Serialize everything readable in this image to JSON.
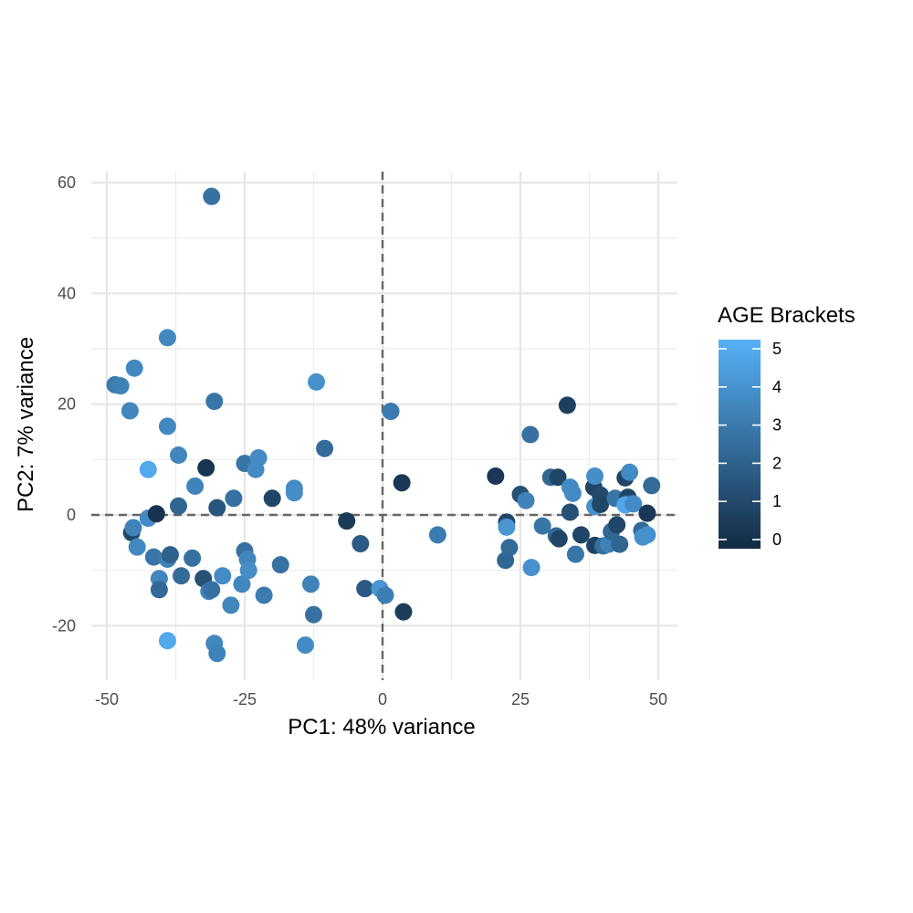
{
  "chart_data": {
    "type": "scatter",
    "title": "",
    "xlabel": "PC1: 48% variance",
    "ylabel": "PC2: 7% variance",
    "xlim": [
      -51,
      53
    ],
    "ylim": [
      -30,
      62
    ],
    "x_ticks": [
      -50,
      -25,
      0,
      25,
      50
    ],
    "x_tick_labels": [
      "-50",
      "-25",
      "0",
      "25",
      "50"
    ],
    "y_ticks": [
      -20,
      0,
      20,
      40,
      60
    ],
    "y_tick_labels": [
      "-20",
      "0",
      "20",
      "40",
      "60"
    ],
    "grid": true,
    "reference_lines": {
      "x": 0,
      "y": 0,
      "style": "dashed"
    },
    "legend": {
      "title": "AGE Brackets",
      "placement": "right",
      "ticks": [
        "0",
        "1",
        "2",
        "3",
        "4",
        "5"
      ],
      "range": [
        0,
        5
      ],
      "color_low": "#132b43",
      "color_high": "#56b1f7"
    },
    "points": [
      {
        "x": -31,
        "y": 57.5,
        "c": 2.6
      },
      {
        "x": -39,
        "y": 32,
        "c": 3.5
      },
      {
        "x": -48.5,
        "y": 23.5,
        "c": 3
      },
      {
        "x": -47.5,
        "y": 23.3,
        "c": 3.2
      },
      {
        "x": -45,
        "y": 26.5,
        "c": 3.5
      },
      {
        "x": -45.8,
        "y": 18.8,
        "c": 3.4
      },
      {
        "x": -39,
        "y": 16,
        "c": 3.5
      },
      {
        "x": -30.5,
        "y": 20.5,
        "c": 2.8
      },
      {
        "x": -12,
        "y": 24,
        "c": 3.8
      },
      {
        "x": -37,
        "y": 10.8,
        "c": 3.4
      },
      {
        "x": -42.5,
        "y": 8.2,
        "c": 4.7
      },
      {
        "x": -32,
        "y": 8.5,
        "c": 0.4
      },
      {
        "x": -34,
        "y": 5.2,
        "c": 3.3
      },
      {
        "x": -37,
        "y": 1.6,
        "c": 2.2
      },
      {
        "x": -30,
        "y": 1.3,
        "c": 1.6
      },
      {
        "x": -27,
        "y": 3,
        "c": 2.6
      },
      {
        "x": -25,
        "y": 9.3,
        "c": 2.8
      },
      {
        "x": -22.5,
        "y": 10.3,
        "c": 3.6
      },
      {
        "x": -23,
        "y": 8.2,
        "c": 3.6
      },
      {
        "x": -16,
        "y": 4.8,
        "c": 3.6
      },
      {
        "x": -16,
        "y": 4,
        "c": 3.7
      },
      {
        "x": -10.5,
        "y": 12,
        "c": 2.4
      },
      {
        "x": -20,
        "y": 3,
        "c": 1
      },
      {
        "x": -45.5,
        "y": -3.2,
        "c": 1
      },
      {
        "x": -45.2,
        "y": -2.3,
        "c": 3.3
      },
      {
        "x": -42.5,
        "y": -0.6,
        "c": 3.6
      },
      {
        "x": -41,
        "y": 0.2,
        "c": 0.3
      },
      {
        "x": -44.5,
        "y": -5.8,
        "c": 3.5
      },
      {
        "x": -41.5,
        "y": -7.6,
        "c": 2.8
      },
      {
        "x": -39,
        "y": -8,
        "c": 3.2
      },
      {
        "x": -38.5,
        "y": -7.2,
        "c": 2
      },
      {
        "x": -40.5,
        "y": -11.5,
        "c": 3.4
      },
      {
        "x": -40.5,
        "y": -13.5,
        "c": 2.3
      },
      {
        "x": -36.5,
        "y": -11,
        "c": 2.4
      },
      {
        "x": -34.5,
        "y": -7.8,
        "c": 2.6
      },
      {
        "x": -32.5,
        "y": -11.5,
        "c": 1.4
      },
      {
        "x": -31.5,
        "y": -13.8,
        "c": 3.3
      },
      {
        "x": -31,
        "y": -13.5,
        "c": 2.6
      },
      {
        "x": -29,
        "y": -11,
        "c": 3.6
      },
      {
        "x": -27.5,
        "y": -16.3,
        "c": 3.4
      },
      {
        "x": -25.5,
        "y": -12.5,
        "c": 3.4
      },
      {
        "x": -25,
        "y": -6.5,
        "c": 2.6
      },
      {
        "x": -24.5,
        "y": -8,
        "c": 3.4
      },
      {
        "x": -24.3,
        "y": -10,
        "c": 3.7
      },
      {
        "x": -21.5,
        "y": -14.5,
        "c": 3
      },
      {
        "x": -18.5,
        "y": -9,
        "c": 2.6
      },
      {
        "x": -13,
        "y": -12.5,
        "c": 3.3
      },
      {
        "x": -12.5,
        "y": -18,
        "c": 2.6
      },
      {
        "x": -14,
        "y": -23.5,
        "c": 3.6
      },
      {
        "x": -30.5,
        "y": -23.2,
        "c": 3.4
      },
      {
        "x": -30,
        "y": -25,
        "c": 3.3
      },
      {
        "x": -39,
        "y": -22.7,
        "c": 4.7
      },
      {
        "x": -6.5,
        "y": -1.1,
        "c": 0.6
      },
      {
        "x": -4,
        "y": -5.2,
        "c": 1.8
      },
      {
        "x": -3.2,
        "y": -13.3,
        "c": 1.8
      },
      {
        "x": -0.5,
        "y": -13.3,
        "c": 4
      },
      {
        "x": 0.5,
        "y": -14.5,
        "c": 3.1
      },
      {
        "x": 3.8,
        "y": -17.5,
        "c": 0.7
      },
      {
        "x": 1.5,
        "y": 18.7,
        "c": 3
      },
      {
        "x": 3.5,
        "y": 5.8,
        "c": 0.5
      },
      {
        "x": 10,
        "y": -3.6,
        "c": 3
      },
      {
        "x": 20.5,
        "y": 7,
        "c": 0.5
      },
      {
        "x": 22.5,
        "y": -1.3,
        "c": 1
      },
      {
        "x": 22.5,
        "y": -2.2,
        "c": 4
      },
      {
        "x": 22.3,
        "y": -8.2,
        "c": 2.2
      },
      {
        "x": 23,
        "y": -5.9,
        "c": 2.4
      },
      {
        "x": 25,
        "y": 3.7,
        "c": 1.4
      },
      {
        "x": 26,
        "y": 2.6,
        "c": 3.3
      },
      {
        "x": 26.8,
        "y": 14.5,
        "c": 2.6
      },
      {
        "x": 27,
        "y": -9.5,
        "c": 3.8
      },
      {
        "x": 29,
        "y": -2,
        "c": 2.8
      },
      {
        "x": 30.5,
        "y": 6.8,
        "c": 2.2
      },
      {
        "x": 31.5,
        "y": -3.8,
        "c": 2.4
      },
      {
        "x": 32,
        "y": -4.3,
        "c": 1
      },
      {
        "x": 31.8,
        "y": 6.8,
        "c": 1
      },
      {
        "x": 33.5,
        "y": 19.8,
        "c": 0.8
      },
      {
        "x": 34,
        "y": 5,
        "c": 3.6
      },
      {
        "x": 34.5,
        "y": 3.9,
        "c": 3.6
      },
      {
        "x": 34,
        "y": 0.5,
        "c": 1.4
      },
      {
        "x": 35,
        "y": -7.1,
        "c": 2.8
      },
      {
        "x": 36,
        "y": -3.6,
        "c": 1
      },
      {
        "x": 38.3,
        "y": 5,
        "c": 1
      },
      {
        "x": 38.5,
        "y": 7,
        "c": 3.7
      },
      {
        "x": 38.5,
        "y": 1.5,
        "c": 3.8
      },
      {
        "x": 38.5,
        "y": -5.5,
        "c": 0.9
      },
      {
        "x": 39.5,
        "y": 3.6,
        "c": 1.2
      },
      {
        "x": 39.5,
        "y": 1.9,
        "c": 1
      },
      {
        "x": 40,
        "y": -5.6,
        "c": 2.6
      },
      {
        "x": 41,
        "y": -5.3,
        "c": 3.2
      },
      {
        "x": 41.5,
        "y": -3,
        "c": 2.2
      },
      {
        "x": 42.2,
        "y": 3,
        "c": 2.8
      },
      {
        "x": 42.5,
        "y": -1.8,
        "c": 1
      },
      {
        "x": 43,
        "y": -5.3,
        "c": 2.2
      },
      {
        "x": 44,
        "y": 6.7,
        "c": 1
      },
      {
        "x": 44.5,
        "y": 3.2,
        "c": 1
      },
      {
        "x": 44.5,
        "y": 2,
        "c": 2.2
      },
      {
        "x": 44.8,
        "y": 7.7,
        "c": 3.6
      },
      {
        "x": 44,
        "y": 1.8,
        "c": 4.6
      },
      {
        "x": 45.5,
        "y": 2,
        "c": 3.6
      },
      {
        "x": 47,
        "y": -2.8,
        "c": 2.4
      },
      {
        "x": 47.2,
        "y": -4,
        "c": 3.8
      },
      {
        "x": 48,
        "y": -3.6,
        "c": 3.8
      },
      {
        "x": 48,
        "y": 0.3,
        "c": 0.5
      },
      {
        "x": 48.8,
        "y": 5.3,
        "c": 2.4
      }
    ]
  }
}
